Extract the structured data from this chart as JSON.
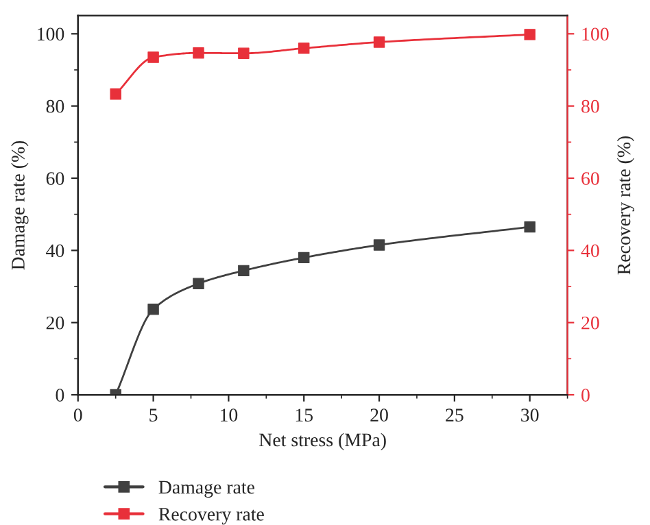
{
  "chart_data": {
    "type": "line",
    "xlabel": "Net stress (MPa)",
    "ylabel": "Damage rate (%)",
    "y2label": "Recovery rate (%)",
    "x": [
      2.5,
      5,
      8,
      11,
      15,
      20,
      30
    ],
    "series": [
      {
        "name": "Damage rate",
        "color": "#404040",
        "values": [
          0,
          23.7,
          30.8,
          34.4,
          38,
          41.5,
          46.5
        ]
      },
      {
        "name": "Recovery rate",
        "color": "#e8303a",
        "axis": "y2",
        "values": [
          83.3,
          93.5,
          94.7,
          94.6,
          96,
          97.7,
          99.8
        ]
      }
    ],
    "xlim": [
      0,
      32.5
    ],
    "xticks": [
      0,
      5,
      10,
      15,
      20,
      25,
      30
    ],
    "ylim": [
      0,
      105
    ],
    "yticks": [
      0,
      20,
      40,
      60,
      80,
      100
    ],
    "y2lim": [
      0,
      105
    ],
    "y2ticks": [
      0,
      20,
      40,
      60,
      80,
      100
    ],
    "marker": "square",
    "line_style": "solid",
    "grid": false,
    "legend": "bottom"
  }
}
